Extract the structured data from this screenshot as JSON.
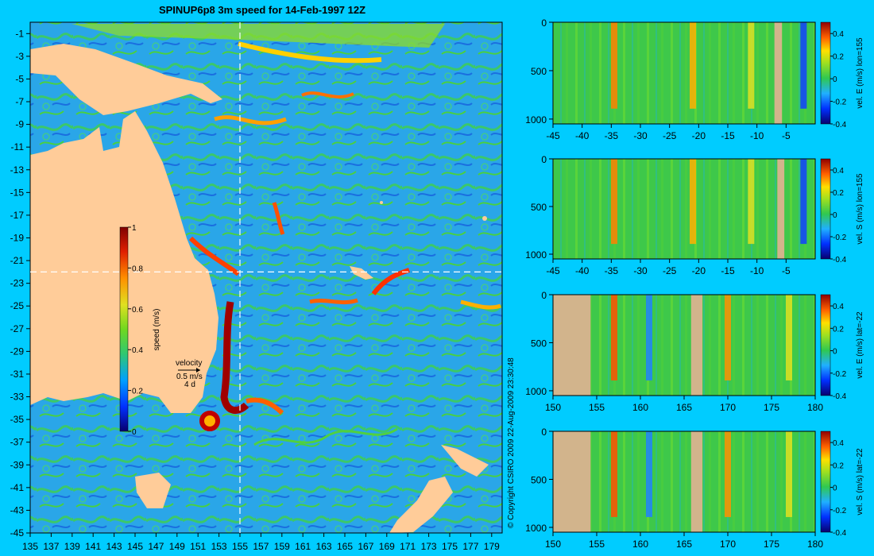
{
  "title": "SPINUP6p8 3m speed for 14-Feb-1997 12Z",
  "copyright": "© Copyright CSIRO 2009   22-Aug-2009 23:30:48",
  "colors": {
    "background": "#00ccff",
    "land": "#ffcc99",
    "section_land": "#d2b48c",
    "colormap": [
      "#08006e",
      "#0018d8",
      "#1060ff",
      "#2aa8ff",
      "#30d0c0",
      "#38c850",
      "#70d820",
      "#c8e020",
      "#ffe000",
      "#ffa000",
      "#ff5000",
      "#e01000",
      "#900000"
    ]
  },
  "chart_data": [
    {
      "type": "heatmap",
      "name": "map",
      "title": "SPINUP6p8 3m speed for 14-Feb-1997 12Z",
      "xlim": [
        135,
        180
      ],
      "ylim": [
        -45,
        0
      ],
      "xticks": [
        135,
        137,
        139,
        141,
        143,
        145,
        147,
        149,
        151,
        153,
        155,
        157,
        159,
        161,
        163,
        165,
        167,
        169,
        171,
        173,
        175,
        177,
        179
      ],
      "yticks": [
        -1,
        -3,
        -5,
        -7,
        -9,
        -11,
        -13,
        -15,
        -17,
        -19,
        -21,
        -23,
        -25,
        -27,
        -29,
        -31,
        -33,
        -35,
        -37,
        -39,
        -41,
        -43,
        -45
      ],
      "colorbar": {
        "label": "speed (m/s)",
        "range": [
          0,
          1
        ],
        "ticks": [
          0,
          0.2,
          0.4,
          0.6,
          0.8,
          1
        ]
      },
      "section_lines": {
        "lon": 155,
        "lat": -22
      },
      "velocity_key": {
        "title": "velocity",
        "scale": "0.5 m/s",
        "duration": "4 d"
      }
    },
    {
      "type": "heatmap",
      "name": "section-1",
      "ylabel": "vel. E (m/s) lon=155",
      "xlim": [
        -45,
        0
      ],
      "xticks": [
        -45,
        -40,
        -35,
        -30,
        -25,
        -20,
        -15,
        -10,
        -5
      ],
      "ylim": [
        1050,
        0
      ],
      "yticks": [
        0,
        500,
        1000
      ],
      "colorbar": {
        "range": [
          -0.4,
          0.5
        ],
        "ticks": [
          0.4,
          0.2,
          0,
          -0.2,
          -0.4
        ]
      }
    },
    {
      "type": "heatmap",
      "name": "section-2",
      "ylabel": "vel. S (m/s) lon=155",
      "xlim": [
        -45,
        0
      ],
      "xticks": [
        -45,
        -40,
        -35,
        -30,
        -25,
        -20,
        -15,
        -10,
        -5
      ],
      "ylim": [
        1050,
        0
      ],
      "yticks": [
        0,
        500,
        1000
      ],
      "colorbar": {
        "range": [
          -0.4,
          0.5
        ],
        "ticks": [
          0.4,
          0.2,
          0,
          -0.2,
          -0.4
        ]
      }
    },
    {
      "type": "heatmap",
      "name": "section-3",
      "ylabel": "vel. E (m/s) lat=-22",
      "xlim": [
        150,
        180
      ],
      "xticks": [
        150,
        155,
        160,
        165,
        170,
        175,
        180
      ],
      "ylim": [
        1050,
        0
      ],
      "yticks": [
        0,
        500,
        1000
      ],
      "colorbar": {
        "range": [
          -0.4,
          0.5
        ],
        "ticks": [
          0.4,
          0.2,
          0,
          -0.2,
          -0.4
        ]
      }
    },
    {
      "type": "heatmap",
      "name": "section-4",
      "ylabel": "vel. S (m/s) lat=-22",
      "xlim": [
        150,
        180
      ],
      "xticks": [
        150,
        155,
        160,
        165,
        170,
        175,
        180
      ],
      "ylim": [
        1050,
        0
      ],
      "yticks": [
        0,
        500,
        1000
      ],
      "colorbar": {
        "range": [
          -0.4,
          0.5
        ],
        "ticks": [
          0.4,
          0.2,
          0,
          -0.2,
          -0.4
        ]
      }
    }
  ]
}
